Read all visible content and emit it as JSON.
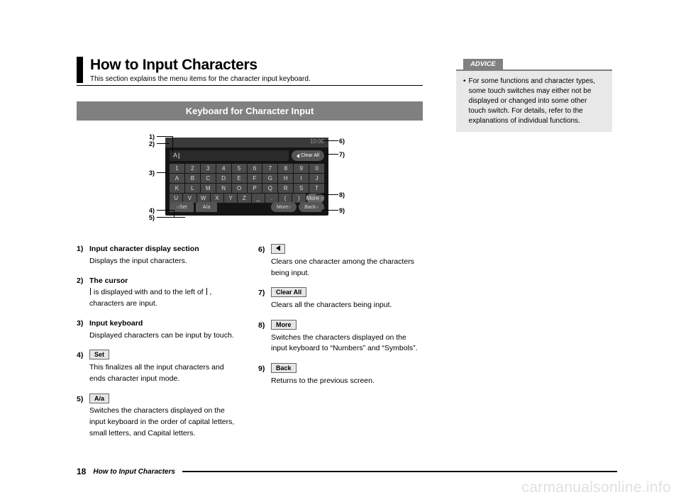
{
  "header": {
    "title": "How to Input Characters",
    "subtitle": "This section explains the menu items for the character input keyboard."
  },
  "section_banner": "Keyboard for Character Input",
  "kb": {
    "clock": "10:00",
    "input_prefix": "A",
    "clear_all": "Clear All",
    "rows": [
      [
        "1",
        "2",
        "3",
        "4",
        "5",
        "6",
        "7",
        "8",
        "9",
        "0"
      ],
      [
        "A",
        "B",
        "C",
        "D",
        "E",
        "F",
        "G",
        "H",
        "I",
        "J"
      ],
      [
        "K",
        "L",
        "M",
        "N",
        "O",
        "P",
        "Q",
        "R",
        "S",
        "T"
      ],
      [
        "U",
        "V",
        "W",
        "X",
        "Y",
        "Z",
        "_",
        ".",
        "(",
        ")"
      ]
    ],
    "set": "Set",
    "aa": "A/a",
    "more": "More",
    "back": "Back"
  },
  "callouts": {
    "c1": "1)",
    "c2": "2)",
    "c3": "3)",
    "c4": "4)",
    "c5": "5)",
    "c6": "6)",
    "c7": "7)",
    "c8": "8)",
    "c9": "9)"
  },
  "items_left": [
    {
      "num": "1)",
      "title": "Input character display section",
      "body": "Displays the input characters."
    },
    {
      "num": "2)",
      "title": "The cursor",
      "body_special": "cursor"
    },
    {
      "num": "3)",
      "title": "Input keyboard",
      "body": "Displayed characters can be input by touch."
    },
    {
      "num": "4)",
      "btn": "Set",
      "body": "This finalizes all the input characters and ends character input mode."
    },
    {
      "num": "5)",
      "btn": "A/a",
      "body": "Switches the characters displayed on the input keyboard in the order of capital letters, small letters, and Capital letters."
    }
  ],
  "items_right": [
    {
      "num": "6)",
      "arrow": true,
      "body": "Clears one character among the characters being input."
    },
    {
      "num": "7)",
      "btn": "Clear All",
      "body": "Clears all the characters being input."
    },
    {
      "num": "8)",
      "btn": "More",
      "body": "Switches the characters displayed on the input keyboard to “Numbers” and “Symbols”."
    },
    {
      "num": "9)",
      "btn": "Back",
      "body": "Returns to the previous screen."
    }
  ],
  "cursor_text": {
    "pre": " is displayed with and to the left of ",
    "post": " , characters are input."
  },
  "advice": {
    "tab": "ADVICE",
    "text": "For some functions and character types, some touch switches may either not be displayed or changed into some other touch switch. For details, refer to the explanations of individual functions."
  },
  "footer": {
    "page": "18",
    "text": "How to Input Characters"
  },
  "watermark": "carmanualsonline.info"
}
